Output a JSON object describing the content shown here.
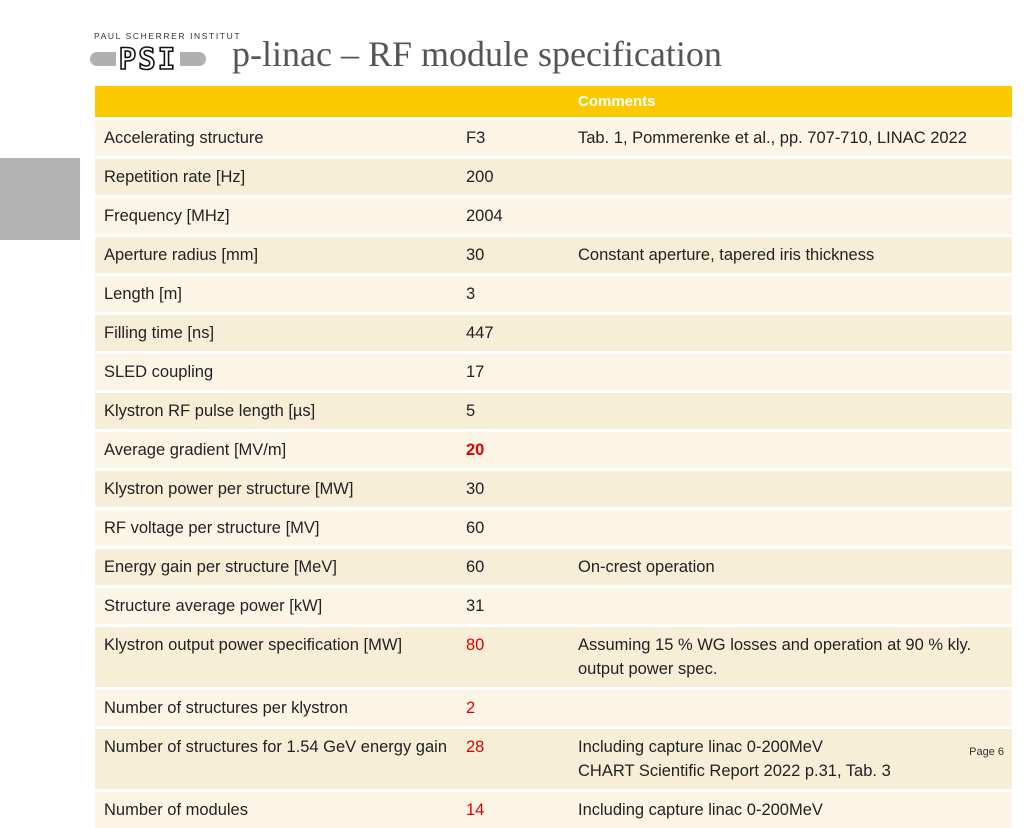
{
  "header": {
    "institute": "PAUL SCHERRER INSTITUT",
    "logo": "PSI",
    "title": "p-linac – RF module specification"
  },
  "table": {
    "header": [
      null,
      null,
      "Comments"
    ],
    "highlight_color": "#e00000",
    "rows": [
      {
        "cells": [
          "Accelerating structure",
          "F3",
          "Tab. 1, Pommerenke et al., pp. 707-710, LINAC 2022"
        ]
      },
      {
        "cells": [
          "Repetition rate [Hz]",
          "200",
          null
        ]
      },
      {
        "cells": [
          "Frequency [MHz]",
          "2004",
          null
        ]
      },
      {
        "cells": [
          "Aperture radius [mm]",
          "30",
          "Constant aperture, tapered iris thickness"
        ]
      },
      {
        "cells": [
          "Length [m]",
          "3",
          null
        ]
      },
      {
        "cells": [
          "Filling time [ns]",
          "447",
          null
        ]
      },
      {
        "cells": [
          "SLED coupling",
          "17",
          null
        ]
      },
      {
        "cells": [
          "Klystron RF pulse length [µs]",
          "5",
          null
        ]
      },
      {
        "cells": [
          "Average gradient [MV/m]",
          "20",
          null
        ],
        "highlight": true,
        "bold": true
      },
      {
        "cells": [
          "Klystron power per structure [MW]",
          "30",
          null
        ]
      },
      {
        "cells": [
          "RF voltage per structure [MV]",
          "60",
          null
        ]
      },
      {
        "cells": [
          "Energy gain per structure [MeV]",
          "60",
          "On-crest operation"
        ]
      },
      {
        "cells": [
          "Structure average power [kW]",
          "31",
          null
        ]
      },
      {
        "cells": [
          "Klystron output power specification [MW]",
          "80",
          "Assuming 15 % WG losses and operation at 90 % kly. output power spec."
        ],
        "highlight": true
      },
      {
        "cells": [
          "Number of structures per klystron",
          "2",
          null
        ],
        "highlight": true
      },
      {
        "cells": [
          "Number of structures for 1.54 GeV energy gain",
          "28",
          "Including capture linac 0-200MeV\nCHART Scientific Report 2022 p.31, Tab. 3"
        ],
        "highlight": true
      },
      {
        "cells": [
          "Number of modules",
          "14",
          "Including capture linac 0-200MeV"
        ],
        "highlight": true
      }
    ]
  },
  "footer": {
    "page": "Page 6"
  }
}
